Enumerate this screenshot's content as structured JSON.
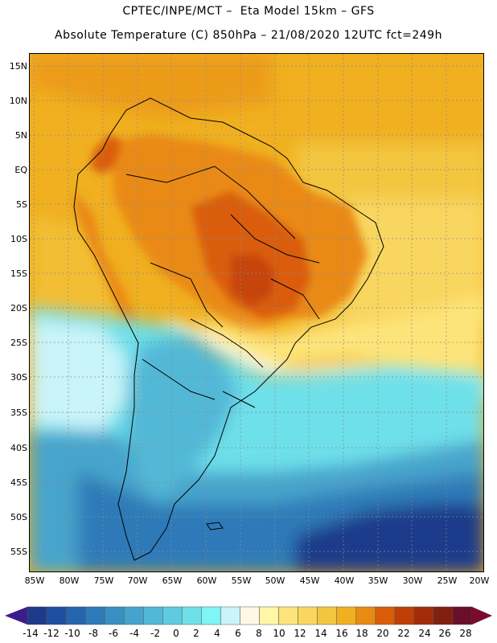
{
  "header": {
    "line1": "CPTEC/INPE/MCT –  Eta Model 15km – GFS",
    "line2": "Absolute Temperature (C) 850hPa – 21/08/2020 12UTC fct=249h"
  },
  "map": {
    "lat_labels": [
      "15N",
      "10N",
      "5N",
      "EQ",
      "5S",
      "10S",
      "15S",
      "20S",
      "25S",
      "30S",
      "35S",
      "40S",
      "45S",
      "50S",
      "55S"
    ],
    "lon_labels": [
      "85W",
      "80W",
      "75W",
      "70W",
      "65W",
      "60W",
      "55W",
      "50W",
      "45W",
      "40W",
      "35W",
      "30W",
      "25W",
      "20W"
    ]
  },
  "colorbar": {
    "labels": [
      "-14",
      "-12",
      "-10",
      "-8",
      "-6",
      "-4",
      "-2",
      "0",
      "2",
      "4",
      "6",
      "8",
      "10",
      "12",
      "14",
      "16",
      "18",
      "20",
      "22",
      "24",
      "26",
      "28"
    ],
    "colors": [
      "#1e3a8a",
      "#1f4fa0",
      "#2565ae",
      "#2f7ab8",
      "#3a8fc2",
      "#46a4cc",
      "#52b8d6",
      "#5ecbe0",
      "#6ee0ea",
      "#7ff5f5",
      "#c9f4f9",
      "#fff8e7",
      "#fff7a6",
      "#fde47a",
      "#f9d65e",
      "#f3c640",
      "#f0b020",
      "#e98a12",
      "#da5d0a",
      "#c13e08",
      "#a22c0a",
      "#80200e",
      "#6a0f2a"
    ],
    "low_arrow_color": "#3b1c8c",
    "high_arrow_color": "#7a0a2e"
  }
}
